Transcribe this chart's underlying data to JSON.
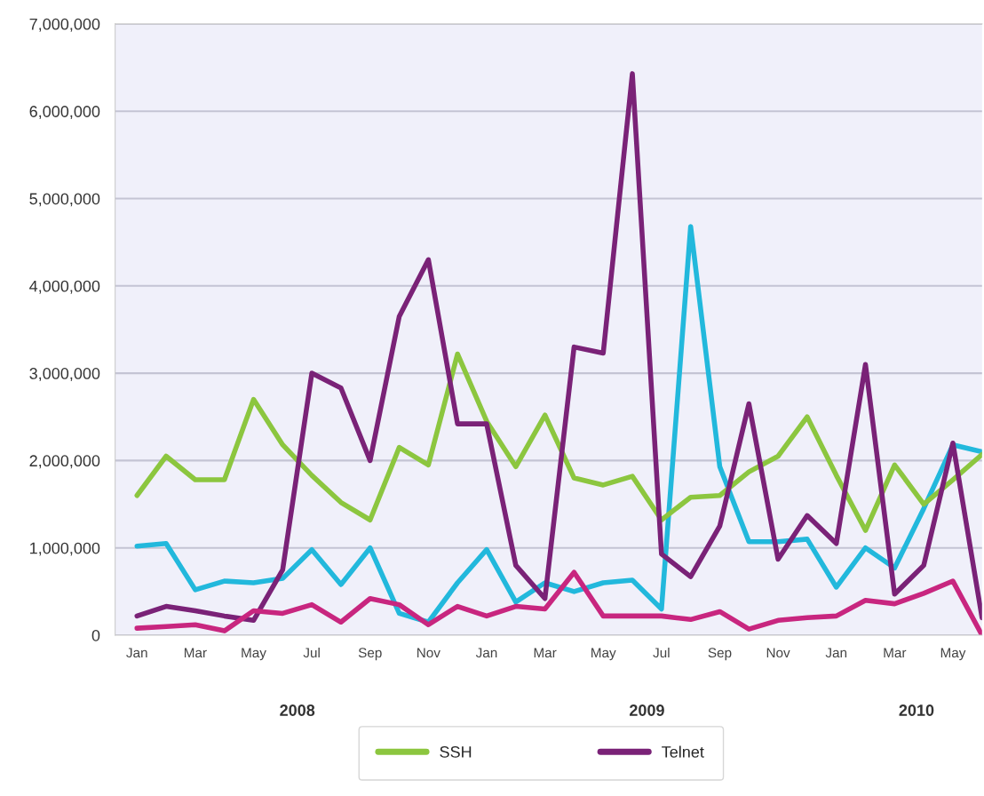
{
  "chart_data": {
    "type": "line",
    "categories": [
      "Jan",
      null,
      "Mar",
      null,
      "May",
      null,
      "Jul",
      null,
      "Sep",
      null,
      "Nov",
      null,
      "Jan",
      null,
      "Mar",
      null,
      "May",
      null,
      "Jul",
      null,
      "Sep",
      null,
      "Nov",
      null,
      "Jan",
      null,
      "Mar",
      null,
      "May",
      null
    ],
    "series": [
      {
        "color": "#22b8dc",
        "values": [
          1020000,
          1050000,
          520000,
          620000,
          600000,
          650000,
          980000,
          580000,
          1000000,
          250000,
          150000,
          600000,
          980000,
          380000,
          600000,
          500000,
          600000,
          630000,
          300000,
          4680000,
          1930000,
          1070000,
          1070000,
          1100000,
          550000,
          1000000,
          770000,
          1450000,
          2180000,
          2100000
        ]
      },
      {
        "name": "SSH",
        "color": "#8cc63f",
        "values": [
          1600000,
          2050000,
          1780000,
          1780000,
          2700000,
          2180000,
          1830000,
          1520000,
          1320000,
          2150000,
          1950000,
          3220000,
          2450000,
          1930000,
          2520000,
          1800000,
          1720000,
          1820000,
          1320000,
          1580000,
          1600000,
          1870000,
          2050000,
          2500000,
          1830000,
          1200000,
          1950000,
          1500000,
          1780000,
          2070000
        ]
      },
      {
        "name": "Telnet",
        "color": "#7a2277",
        "values": [
          220000,
          330000,
          280000,
          220000,
          170000,
          750000,
          3000000,
          2830000,
          2000000,
          3650000,
          4300000,
          2420000,
          2420000,
          800000,
          420000,
          3300000,
          3230000,
          6430000,
          930000,
          670000,
          1250000,
          2650000,
          870000,
          1370000,
          1050000,
          3100000,
          470000,
          800000,
          2200000,
          200000
        ]
      },
      {
        "color": "#c8267f",
        "values": [
          80000,
          100000,
          120000,
          50000,
          280000,
          250000,
          350000,
          150000,
          420000,
          350000,
          120000,
          330000,
          220000,
          330000,
          300000,
          720000,
          220000,
          220000,
          220000,
          180000,
          270000,
          70000,
          170000,
          200000,
          220000,
          400000,
          360000,
          480000,
          620000,
          0
        ]
      }
    ],
    "ylim": [
      0,
      7000000
    ],
    "yticks": [
      {
        "value": 0,
        "label": "0"
      },
      {
        "value": 1000000,
        "label": "1,000,000"
      },
      {
        "value": 2000000,
        "label": "2,000,000"
      },
      {
        "value": 3000000,
        "label": "3,000,000"
      },
      {
        "value": 4000000,
        "label": "4,000,000"
      },
      {
        "value": 5000000,
        "label": "5,000,000"
      },
      {
        "value": 6000000,
        "label": "6,000,000"
      },
      {
        "value": 7000000,
        "label": "7,000,000"
      }
    ],
    "annotations": [
      "2008",
      "2009",
      "2010"
    ],
    "grid": "y",
    "legend": "bottom",
    "marker": "none",
    "line_style": "solid"
  }
}
